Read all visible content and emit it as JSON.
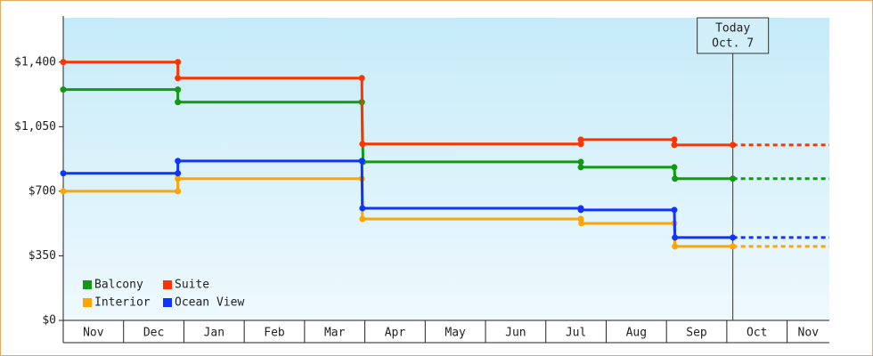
{
  "chart_data": {
    "type": "step-line",
    "categories": [
      "Nov",
      "Dec",
      "Jan",
      "Feb",
      "Mar",
      "Apr",
      "May",
      "Jun",
      "Jul",
      "Aug",
      "Sep",
      "Oct",
      "Nov"
    ],
    "xlim": [
      0,
      12.7
    ],
    "ylim": [
      0,
      1640
    ],
    "yticks": [
      {
        "value": 0,
        "label": "$0"
      },
      {
        "value": 350,
        "label": "$350"
      },
      {
        "value": 700,
        "label": "$700"
      },
      {
        "value": 1050,
        "label": "$1,050"
      },
      {
        "value": 1400,
        "label": "$1,400"
      }
    ],
    "today": {
      "x": 11.1,
      "label": [
        "Today",
        "Oct. 7"
      ]
    },
    "legend": "bottom-left",
    "series": [
      {
        "name": "Balcony",
        "color": "#119911",
        "x": [
          0,
          1.9,
          1.9,
          4.95,
          4.97,
          8.58,
          8.58,
          10.13,
          10.14,
          11.1
        ],
        "values": [
          1251,
          1251,
          1183,
          1183,
          859,
          859,
          830,
          830,
          768,
          768
        ]
      },
      {
        "name": "Suite",
        "color": "#ff3300",
        "x": [
          0,
          1.9,
          1.9,
          4.95,
          4.96,
          8.58,
          8.58,
          10.13,
          10.13,
          11.1
        ],
        "values": [
          1400,
          1400,
          1313,
          1313,
          956,
          956,
          980,
          980,
          951,
          951
        ]
      },
      {
        "name": "Interior",
        "color": "#ffa500",
        "x": [
          0,
          1.9,
          1.9,
          4.95,
          4.96,
          8.58,
          8.59,
          10.13,
          10.14,
          11.1
        ],
        "values": [
          700,
          700,
          768,
          768,
          550,
          550,
          526,
          526,
          401,
          401
        ]
      },
      {
        "name": "Ocean View",
        "color": "#1133ff",
        "x": [
          0,
          1.9,
          1.9,
          4.95,
          4.96,
          8.58,
          8.58,
          10.13,
          10.14,
          11.1
        ],
        "values": [
          797,
          797,
          864,
          864,
          608,
          608,
          599,
          599,
          449,
          449
        ]
      }
    ]
  }
}
